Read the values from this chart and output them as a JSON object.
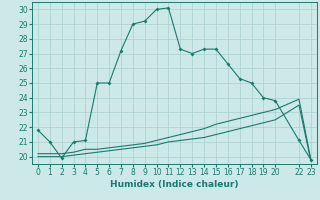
{
  "xlabel": "Humidex (Indice chaleur)",
  "bg_color": "#cce8e8",
  "grid_color": "#aacfcf",
  "line_color": "#1a7a6e",
  "xlim": [
    -0.5,
    23.5
  ],
  "ylim": [
    19.5,
    30.5
  ],
  "yticks": [
    20,
    21,
    22,
    23,
    24,
    25,
    26,
    27,
    28,
    29,
    30
  ],
  "xticks": [
    0,
    1,
    2,
    3,
    4,
    5,
    6,
    7,
    8,
    9,
    10,
    11,
    12,
    13,
    14,
    15,
    16,
    17,
    18,
    19,
    20,
    22,
    23
  ],
  "line1_x": [
    0,
    1,
    2,
    3,
    4,
    5,
    6,
    7,
    8,
    9,
    10,
    11,
    12,
    13,
    14,
    15,
    16,
    17,
    18,
    19,
    20,
    22,
    23
  ],
  "line1_y": [
    21.8,
    21.0,
    19.9,
    21.0,
    21.1,
    25.0,
    25.0,
    27.2,
    29.0,
    29.2,
    30.0,
    30.1,
    27.3,
    27.0,
    27.3,
    27.3,
    26.3,
    25.3,
    25.0,
    24.0,
    23.8,
    21.1,
    19.8
  ],
  "line2_x": [
    0,
    1,
    2,
    3,
    4,
    5,
    6,
    7,
    8,
    9,
    10,
    11,
    12,
    13,
    14,
    15,
    16,
    17,
    18,
    19,
    20,
    22,
    23
  ],
  "line2_y": [
    20.2,
    20.2,
    20.2,
    20.3,
    20.5,
    20.5,
    20.6,
    20.7,
    20.8,
    20.9,
    21.1,
    21.3,
    21.5,
    21.7,
    21.9,
    22.2,
    22.4,
    22.6,
    22.8,
    23.0,
    23.2,
    23.9,
    19.8
  ],
  "line3_x": [
    0,
    1,
    2,
    3,
    4,
    5,
    6,
    7,
    8,
    9,
    10,
    11,
    12,
    13,
    14,
    15,
    16,
    17,
    18,
    19,
    20,
    22,
    23
  ],
  "line3_y": [
    20.0,
    20.0,
    20.0,
    20.1,
    20.2,
    20.3,
    20.4,
    20.5,
    20.6,
    20.7,
    20.8,
    21.0,
    21.1,
    21.2,
    21.3,
    21.5,
    21.7,
    21.9,
    22.1,
    22.3,
    22.5,
    23.5,
    19.7
  ],
  "tick_fontsize": 5.5,
  "xlabel_fontsize": 6.5,
  "marker": "D",
  "markersize": 2.0,
  "linewidth": 0.8
}
